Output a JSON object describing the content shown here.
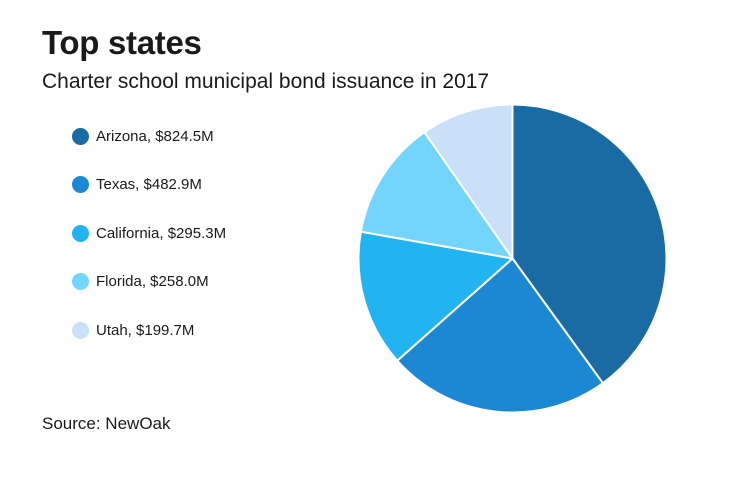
{
  "chart_data": {
    "type": "pie",
    "title": "Top states",
    "subtitle": "Charter school municipal bond issuance in 2017",
    "source": "Source: NewOak",
    "legend_position": "left",
    "slices": [
      {
        "label": "Arizona, $824.5M",
        "name": "Arizona",
        "value": 824.5,
        "color": "#1a6aa3"
      },
      {
        "label": "Texas, $482.9M",
        "name": "Texas",
        "value": 482.9,
        "color": "#1c87d3"
      },
      {
        "label": "California, $295.3M",
        "name": "California",
        "value": 295.3,
        "color": "#22b4f0"
      },
      {
        "label": "Florida, $258.0M",
        "name": "Florida",
        "value": 258.0,
        "color": "#74d5fc"
      },
      {
        "label": "Utah, $199.7M",
        "name": "Utah",
        "value": 199.7,
        "color": "#c9e0f8"
      }
    ]
  }
}
